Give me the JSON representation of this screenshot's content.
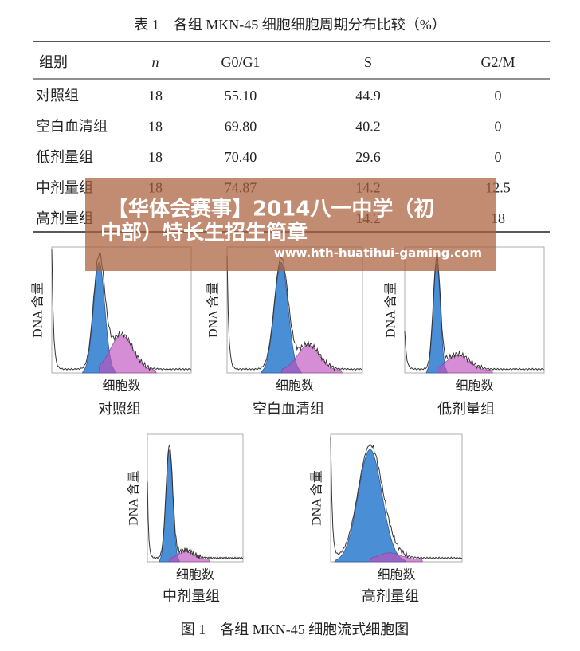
{
  "table": {
    "title": "表 1　各组 MKN-45 细胞细胞周期分布比较（%）",
    "header": [
      "组别",
      "n",
      "G0/G1",
      "S",
      "G2/M"
    ],
    "rows": [
      [
        "对照组",
        "18",
        "55.10",
        "44.9",
        "0"
      ],
      [
        "空白血清组",
        "18",
        "69.80",
        "40.2",
        "0"
      ],
      [
        "低剂量组",
        "18",
        "70.40",
        "29.6",
        "0"
      ],
      [
        "中剂量组",
        "18",
        "74.87",
        "14.2",
        "12.5"
      ],
      [
        "高剂量组",
        null,
        null,
        "14.2",
        "18"
      ]
    ]
  },
  "figure": {
    "caption": "图 1　各组 MKN-45 细胞流式细胞图",
    "panels": [
      {
        "y_label": "DNA 含量",
        "x_label": "细胞数",
        "caption": "对照组"
      },
      {
        "y_label": "DNA 含量",
        "x_label": "细胞数",
        "caption": "空白血清组"
      },
      {
        "y_label": "DNA 含量",
        "x_label": "细胞数",
        "caption": "低剂量组"
      },
      {
        "y_label": "DNA 含量",
        "x_label": "细胞数",
        "caption": "中剂量组"
      },
      {
        "y_label": "DNA 含量",
        "x_label": "细胞数",
        "caption": "高剂量组"
      }
    ]
  },
  "overlay": {
    "line1": "【华体会赛事】2014八一中学（初",
    "line2": "中部）特长生招生简章",
    "url": "www.hth-huatihui-gaming.com"
  }
}
